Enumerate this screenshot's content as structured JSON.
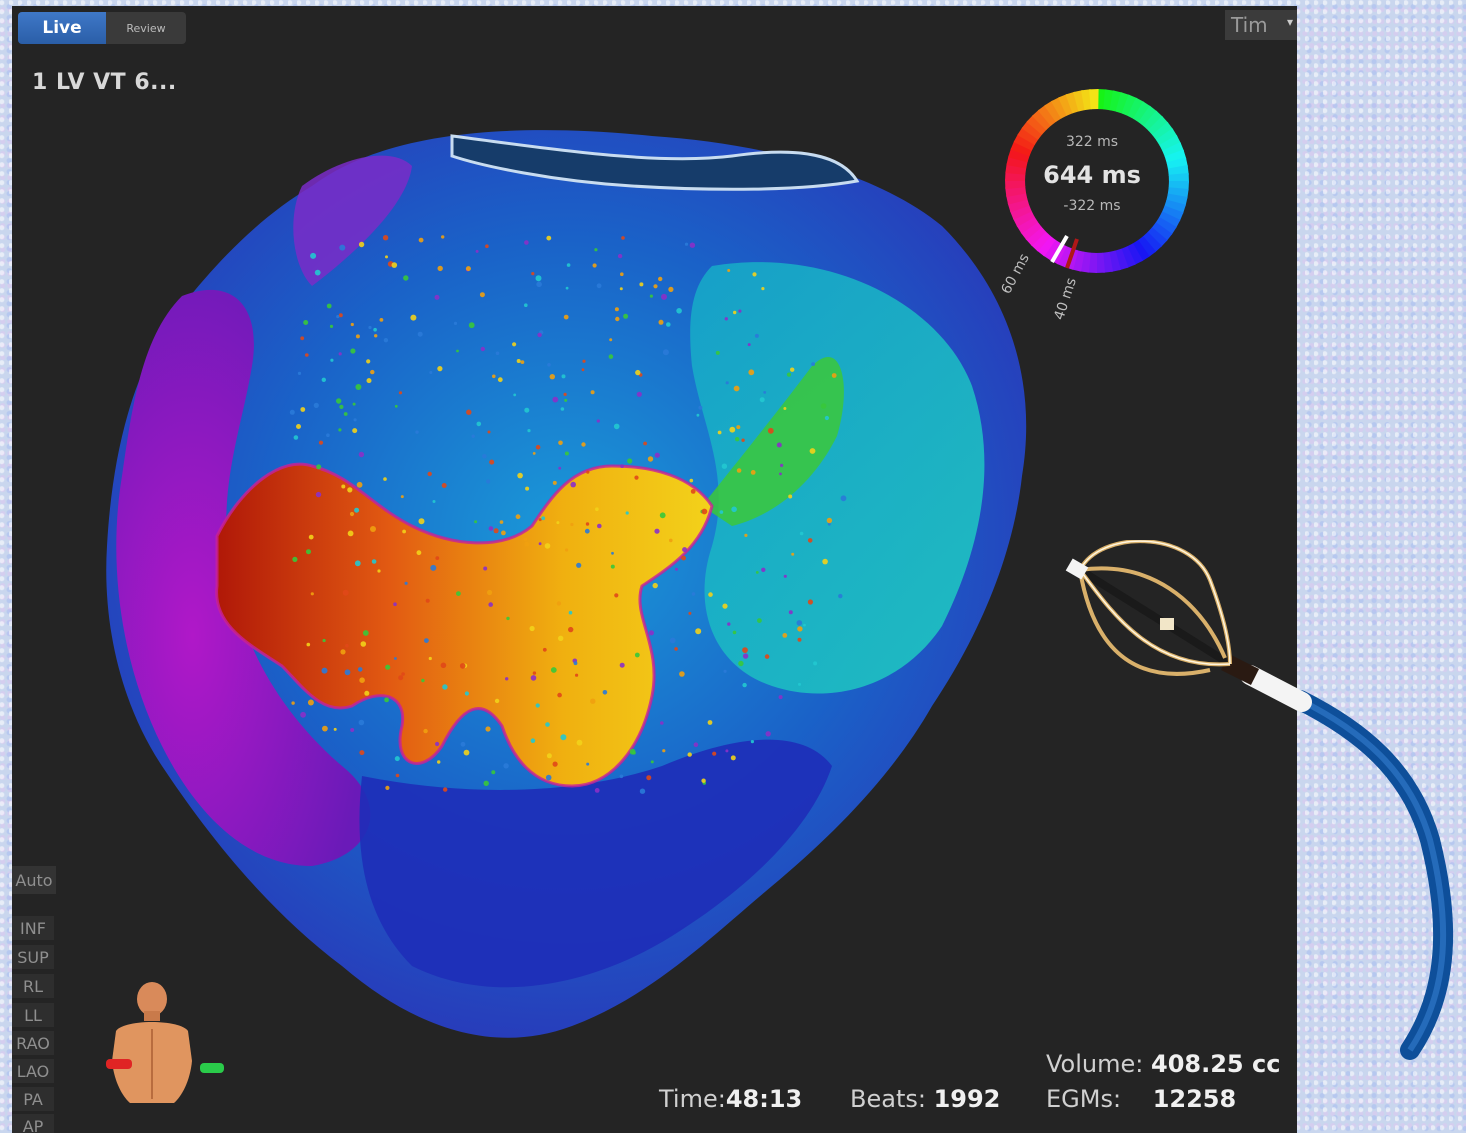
{
  "tabs": {
    "live": "Live",
    "review": "Review"
  },
  "map_name": "1 LV VT 6...",
  "time_dropdown": {
    "label": "Tim",
    "icon": "chevron-down-icon"
  },
  "color_ring": {
    "top_label": "322 ms",
    "center_label": "644 ms",
    "bottom_label": "-322 ms",
    "tick_a": "60 ms",
    "tick_b": "40 ms"
  },
  "view_buttons": {
    "auto": "Auto",
    "presets": [
      "INF",
      "SUP",
      "RL",
      "LL",
      "RAO",
      "LAO",
      "PA",
      "AP"
    ]
  },
  "stats": {
    "volume_label": "Volume:",
    "volume_value": "408.25 cc",
    "time_label": "Time:",
    "time_value": "48:13",
    "beats_label": "Beats:",
    "beats_value": "1992",
    "egms_label": "EGMs:",
    "egms_value": "12258"
  },
  "colors": {
    "viewer_bg": "#242424",
    "live_tab": "#2f66b3",
    "activation_early": "#e03c10",
    "activation_mid": "#f0c010",
    "activation_late": "#8a20c8",
    "catheter_shaft": "#0e4f9a"
  }
}
